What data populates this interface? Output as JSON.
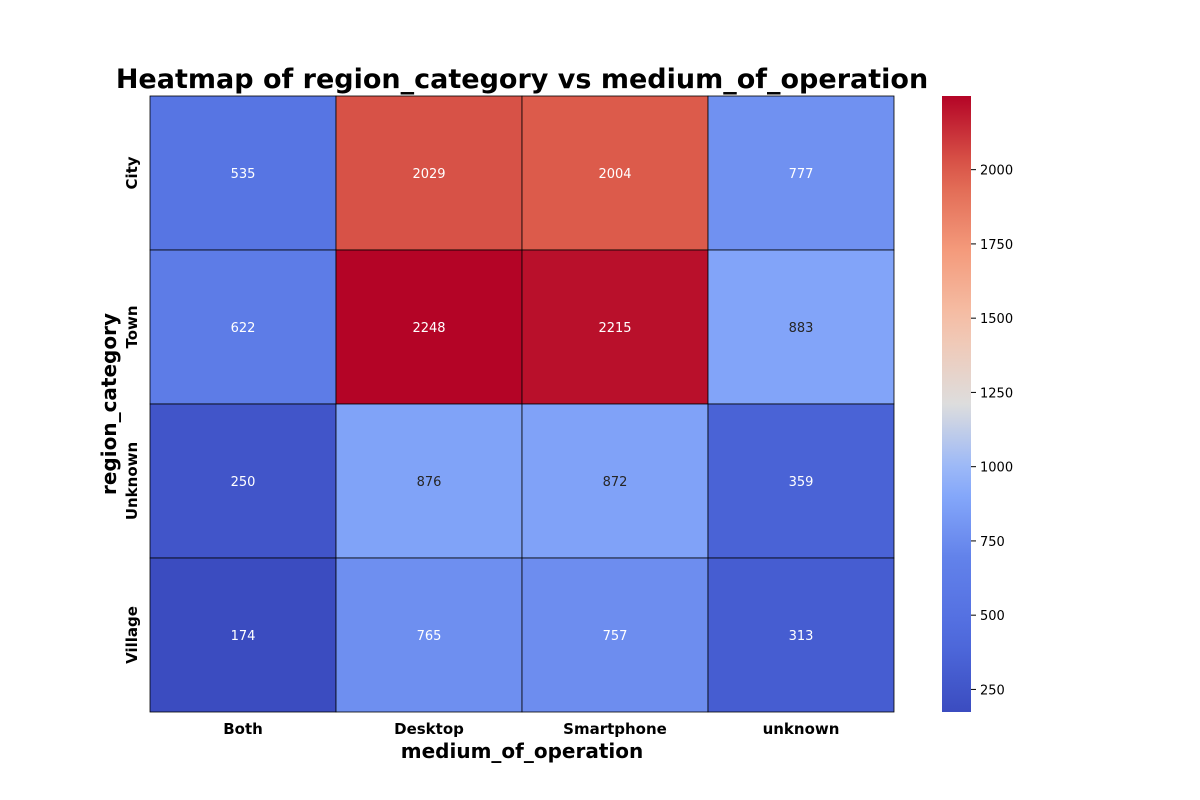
{
  "chart_data": {
    "type": "heatmap",
    "title": "Heatmap of region_category vs medium_of_operation",
    "xlabel": "medium_of_operation",
    "ylabel": "region_category",
    "x_categories": [
      "Both",
      "Desktop",
      "Smartphone",
      "unknown"
    ],
    "y_categories": [
      "City",
      "Town",
      "Unknown",
      "Village"
    ],
    "values": [
      [
        535,
        2029,
        2004,
        777
      ],
      [
        622,
        2248,
        2215,
        883
      ],
      [
        250,
        876,
        872,
        359
      ],
      [
        174,
        765,
        757,
        313
      ]
    ],
    "colormap": "coolwarm",
    "colorbar": {
      "range": [
        174,
        2248
      ],
      "ticks": [
        250,
        500,
        750,
        1000,
        1250,
        1500,
        1750,
        2000
      ]
    },
    "cell_border_color": "#000000"
  }
}
